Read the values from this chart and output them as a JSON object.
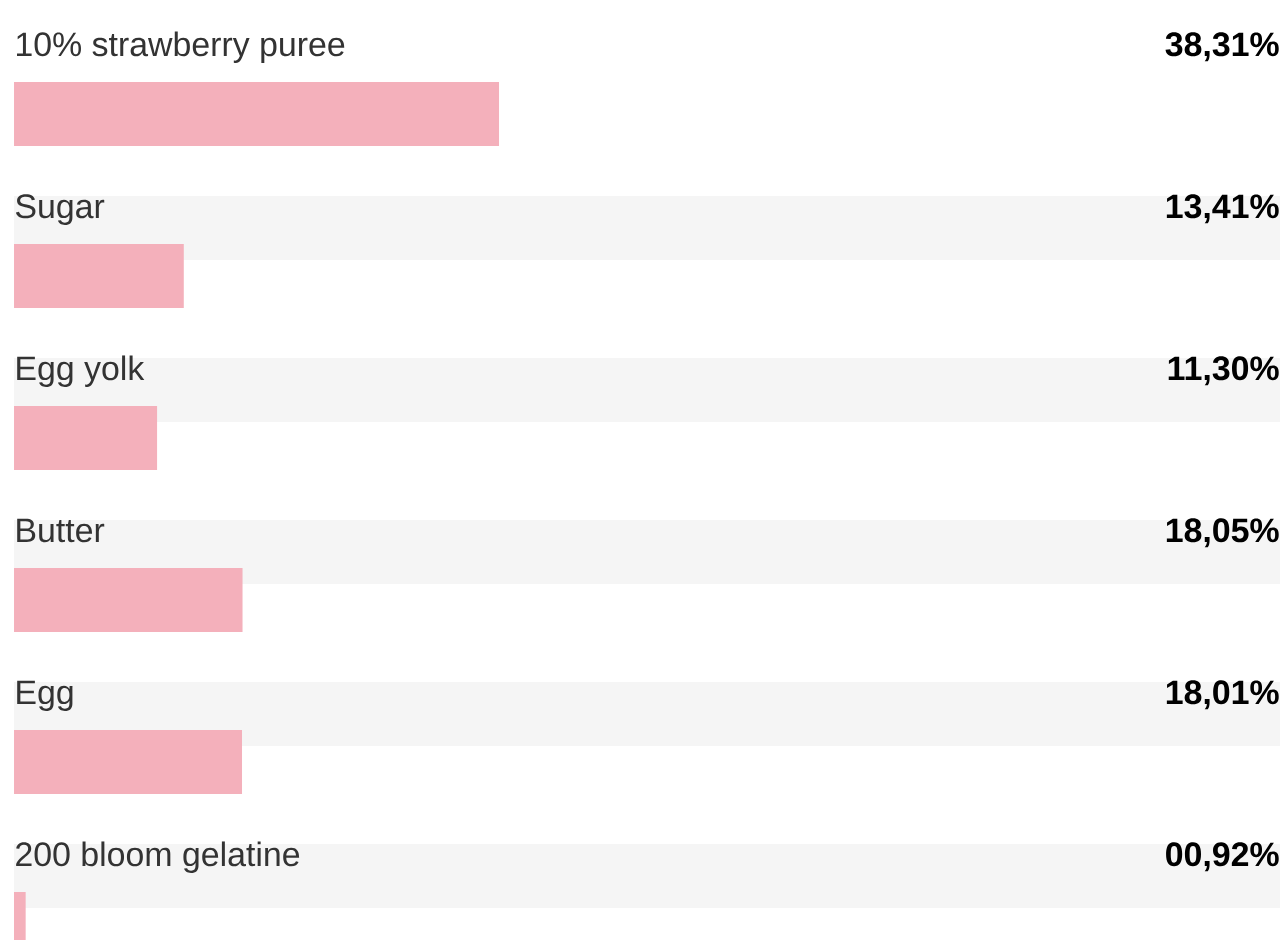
{
  "chart_data": {
    "type": "bar",
    "orientation": "horizontal",
    "categories": [
      "10% strawberry puree",
      "Sugar",
      "Egg yolk",
      "Butter",
      "Egg",
      "200 bloom gelatine"
    ],
    "values": [
      38.31,
      13.41,
      11.3,
      18.05,
      18.01,
      0.92
    ],
    "value_labels": [
      "38,31%",
      "13,41%",
      "11,30%",
      "18,05%",
      "18,01%",
      "00,92%"
    ],
    "color": "#f4b0bb",
    "xlim": [
      0,
      100
    ]
  }
}
